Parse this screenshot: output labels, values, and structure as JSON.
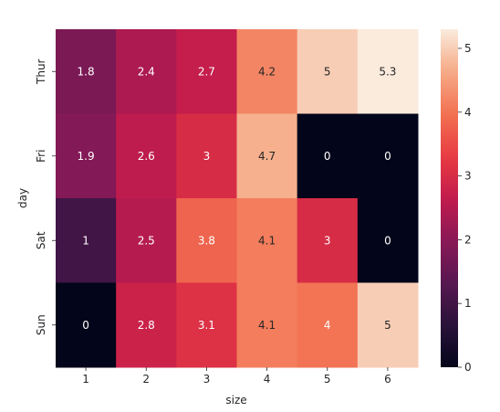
{
  "chart_data": {
    "type": "heatmap",
    "title": "",
    "xlabel": "size",
    "ylabel": "day",
    "x_categories": [
      "1",
      "2",
      "3",
      "4",
      "5",
      "6"
    ],
    "y_categories": [
      "Thur",
      "Fri",
      "Sat",
      "Sun"
    ],
    "values": [
      [
        1.8,
        2.4,
        2.7,
        4.2,
        5,
        5.3
      ],
      [
        1.9,
        2.6,
        3,
        4.7,
        0,
        0
      ],
      [
        1,
        2.5,
        3.8,
        4.1,
        3,
        0
      ],
      [
        0,
        2.8,
        3.1,
        4.1,
        4,
        5
      ]
    ],
    "value_labels": [
      [
        "1.8",
        "2.4",
        "2.7",
        "4.2",
        "5",
        "5.3"
      ],
      [
        "1.9",
        "2.6",
        "3",
        "4.7",
        "0",
        "0"
      ],
      [
        "1",
        "2.5",
        "3.8",
        "4.1",
        "3",
        "0"
      ],
      [
        "0",
        "2.8",
        "3.1",
        "4.1",
        "4",
        "5"
      ]
    ],
    "colorbar": {
      "min": 0,
      "max": 5.3,
      "ticks": [
        "0",
        "1",
        "2",
        "3",
        "4",
        "5"
      ]
    },
    "colormap": "rocket",
    "grid": false
  }
}
